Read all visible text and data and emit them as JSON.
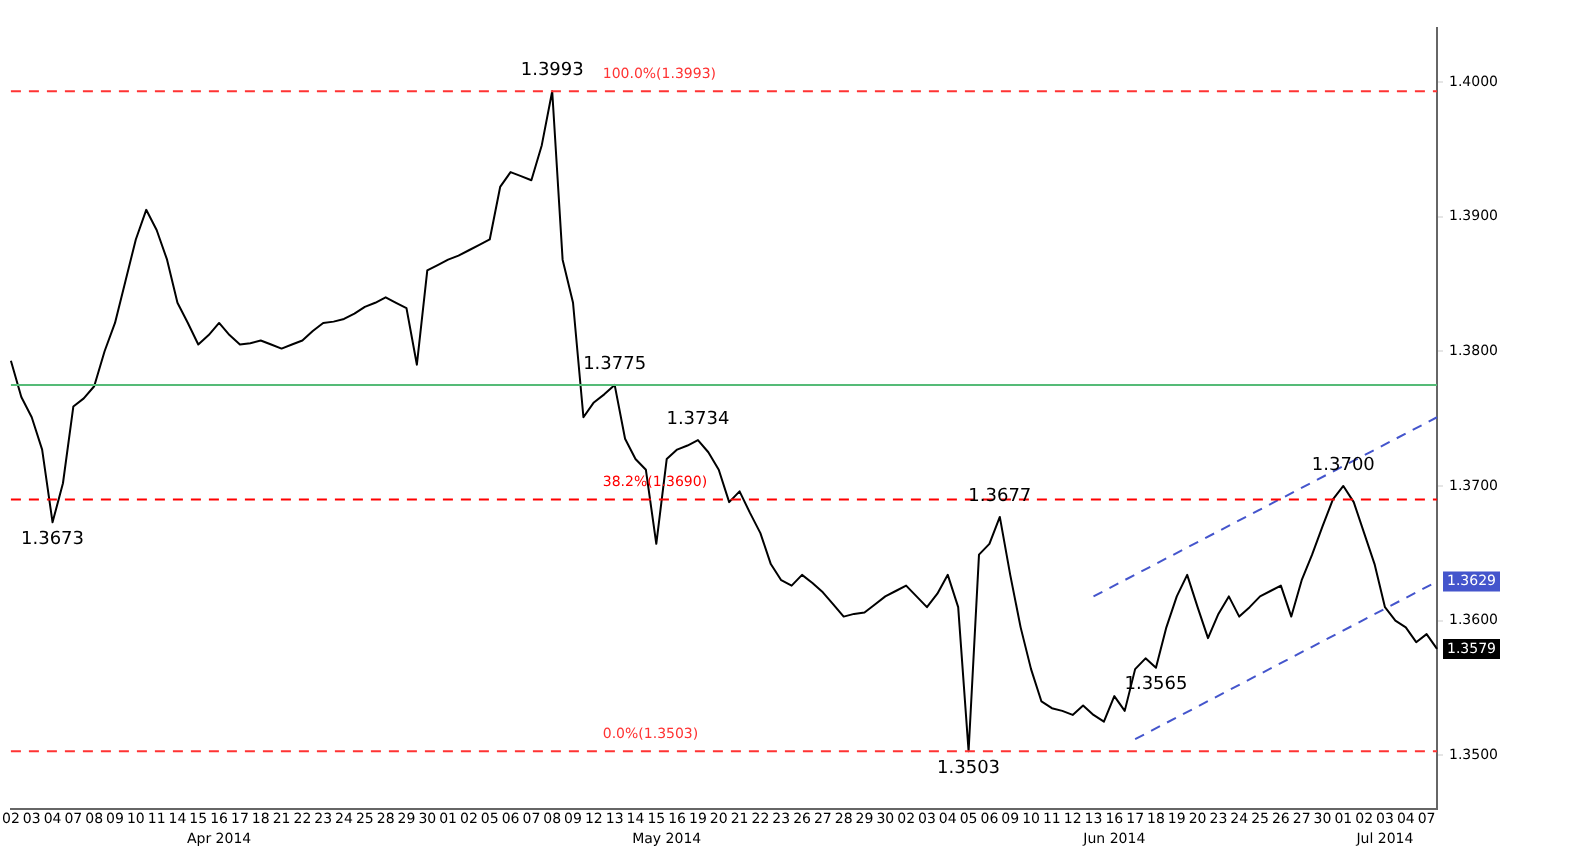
{
  "chart_data": {
    "type": "line",
    "marker": "none",
    "line_style": "solid",
    "categories": [
      "02",
      null,
      "03",
      null,
      "04",
      null,
      "07",
      null,
      "08",
      null,
      "09",
      null,
      "10",
      null,
      "11",
      null,
      "14",
      null,
      "15",
      null,
      "16",
      null,
      "17",
      null,
      "18",
      null,
      "21",
      null,
      "22",
      null,
      "23",
      null,
      "24",
      null,
      "25",
      null,
      "28",
      null,
      "29",
      null,
      "30",
      null,
      "01",
      null,
      "02",
      null,
      "05",
      null,
      "06",
      null,
      "07",
      null,
      "08",
      null,
      "09",
      null,
      "12",
      null,
      "13",
      null,
      "14",
      null,
      "15",
      null,
      "16",
      null,
      "19",
      null,
      "20",
      null,
      "21",
      null,
      "22",
      null,
      "23",
      null,
      "26",
      null,
      "27",
      null,
      "28",
      null,
      "29",
      null,
      "30",
      null,
      "02",
      null,
      "03",
      null,
      "04",
      null,
      "05",
      null,
      "06",
      null,
      "09",
      null,
      "10",
      null,
      "11",
      null,
      "12",
      null,
      "13",
      null,
      "16",
      null,
      "17",
      null,
      "18",
      null,
      "19",
      null,
      "20",
      null,
      "23",
      null,
      "24",
      null,
      "25",
      null,
      "26",
      null,
      "27",
      null,
      "30",
      null,
      "01",
      null,
      "02",
      null,
      "03",
      null,
      "04",
      null,
      "07",
      null
    ],
    "ylim": [
      1.346,
      1.404
    ],
    "yticks": [
      {
        "value": 1.35,
        "label": "1.3500"
      },
      {
        "value": 1.36,
        "label": "1.3600"
      },
      {
        "value": 1.37,
        "label": "1.3700"
      },
      {
        "value": 1.38,
        "label": "1.3800"
      },
      {
        "value": 1.39,
        "label": "1.3900"
      },
      {
        "value": 1.4,
        "label": "1.4000"
      }
    ],
    "series": [
      {
        "color": "#000000",
        "values": [
          1.3793,
          1.3766,
          1.3751,
          1.3727,
          1.3673,
          1.3702,
          1.3759,
          1.3765,
          1.3774,
          1.38,
          1.3821,
          1.3852,
          1.3883,
          1.3905,
          1.389,
          1.3868,
          1.3836,
          1.3821,
          1.3805,
          1.3812,
          1.3821,
          1.3812,
          1.3805,
          1.3806,
          1.3808,
          1.3805,
          1.3802,
          1.3805,
          1.3808,
          1.3815,
          1.3821,
          1.3822,
          1.3824,
          1.3828,
          1.3833,
          1.3836,
          1.384,
          1.3836,
          1.3832,
          1.379,
          1.386,
          1.3864,
          1.3868,
          1.3871,
          1.3875,
          1.3879,
          1.3883,
          1.3922,
          1.3933,
          1.393,
          1.3927,
          1.3953,
          1.3993,
          1.3868,
          1.3836,
          1.3751,
          1.3762,
          1.3768,
          1.3775,
          1.3735,
          1.372,
          1.3712,
          1.3657,
          1.372,
          1.3727,
          1.373,
          1.3734,
          1.3725,
          1.3712,
          1.3688,
          1.3696,
          1.368,
          1.3665,
          1.3642,
          1.363,
          1.3626,
          1.3634,
          1.3628,
          1.3621,
          1.3612,
          1.3603,
          1.3605,
          1.3606,
          1.3612,
          1.3618,
          1.3622,
          1.3626,
          1.3618,
          1.361,
          1.362,
          1.3634,
          1.361,
          1.3503,
          1.3649,
          1.3657,
          1.3677,
          1.3634,
          1.3595,
          1.3564,
          1.354,
          1.3535,
          1.3533,
          1.353,
          1.3537,
          1.353,
          1.3525,
          1.3544,
          1.3533,
          1.3564,
          1.3572,
          1.3565,
          1.3595,
          1.3618,
          1.3634,
          1.361,
          1.3587,
          1.3605,
          1.3618,
          1.3603,
          1.361,
          1.3618,
          1.3622,
          1.3626,
          1.3603,
          1.363,
          1.3649,
          1.367,
          1.369,
          1.37,
          1.3688,
          1.3665,
          1.3642,
          1.361,
          1.36,
          1.3595,
          1.3584,
          1.359,
          1.3579
        ]
      },
      {
        "type": "line",
        "color": "#4455cc",
        "line_style": "dashed",
        "values": [
          null,
          null,
          null,
          null,
          null,
          null,
          null,
          null,
          null,
          null,
          null,
          null,
          null,
          null,
          null,
          null,
          null,
          null,
          null,
          null,
          null,
          null,
          null,
          null,
          null,
          null,
          null,
          null,
          null,
          null,
          null,
          null,
          null,
          null,
          null,
          null,
          null,
          null,
          null,
          null,
          null,
          null,
          null,
          null,
          null,
          null,
          null,
          null,
          null,
          null,
          null,
          null,
          null,
          null,
          null,
          null,
          null,
          null,
          null,
          null,
          null,
          null,
          null,
          null,
          null,
          null,
          null,
          null,
          null,
          null,
          null,
          null,
          null,
          null,
          null,
          null,
          null,
          null,
          null,
          null,
          null,
          null,
          null,
          null,
          null,
          null,
          null,
          null,
          null,
          null,
          null,
          null,
          null,
          null,
          null,
          null,
          null,
          null,
          null,
          null,
          null,
          null,
          null,
          null,
          1.3618,
          null,
          null,
          null,
          null,
          null,
          null,
          null,
          null,
          null,
          null,
          null,
          null,
          null,
          null,
          null,
          null,
          null,
          null,
          null,
          null,
          null,
          null,
          null,
          null,
          null,
          null,
          null,
          null,
          null,
          null,
          null,
          null,
          1.3751
        ]
      },
      {
        "type": "line",
        "color": "#4455cc",
        "line_style": "dashed",
        "values": [
          null,
          null,
          null,
          null,
          null,
          null,
          null,
          null,
          null,
          null,
          null,
          null,
          null,
          null,
          null,
          null,
          null,
          null,
          null,
          null,
          null,
          null,
          null,
          null,
          null,
          null,
          null,
          null,
          null,
          null,
          null,
          null,
          null,
          null,
          null,
          null,
          null,
          null,
          null,
          null,
          null,
          null,
          null,
          null,
          null,
          null,
          null,
          null,
          null,
          null,
          null,
          null,
          null,
          null,
          null,
          null,
          null,
          null,
          null,
          null,
          null,
          null,
          null,
          null,
          null,
          null,
          null,
          null,
          null,
          null,
          null,
          null,
          null,
          null,
          null,
          null,
          null,
          null,
          null,
          null,
          null,
          null,
          null,
          null,
          null,
          null,
          null,
          null,
          null,
          null,
          null,
          null,
          null,
          null,
          null,
          null,
          null,
          null,
          null,
          null,
          null,
          null,
          null,
          null,
          null,
          null,
          null,
          null,
          1.3512,
          null,
          null,
          null,
          null,
          null,
          null,
          null,
          null,
          null,
          null,
          null,
          null,
          null,
          null,
          null,
          null,
          null,
          null,
          null,
          null,
          null,
          null,
          null,
          null,
          null,
          null,
          null,
          null,
          1.3629
        ]
      }
    ],
    "ref_lines": [
      {
        "axis": "y",
        "value": 1.3993,
        "label": "100.0%(1.3993)",
        "color": "#ff3333",
        "line_style": "dashed"
      },
      {
        "axis": "y",
        "value": 1.369,
        "label": "38.2%(1.3690)",
        "color": "#ff0000",
        "line_style": "dashed"
      },
      {
        "axis": "y",
        "value": 1.3503,
        "label": "0.0%(1.3503)",
        "color": "#ff3333",
        "line_style": "dashed"
      },
      {
        "axis": "y",
        "value": 1.3775,
        "color": "#55bb77",
        "line_style": "solid"
      }
    ],
    "annotations": [
      {
        "text": "1.3993",
        "y": 1.3993
      },
      {
        "text": "1.3673",
        "y": 1.3673
      },
      {
        "text": "1.3775",
        "y": 1.3775
      },
      {
        "text": "1.3734",
        "y": 1.3734
      },
      {
        "text": "1.3677",
        "y": 1.3677
      },
      {
        "text": "1.3503",
        "y": 1.3503
      },
      {
        "text": "1.3565",
        "y": 1.3565
      },
      {
        "text": "1.3700",
        "y": 1.37
      },
      {
        "text": "1.3629",
        "y": 1.3629
      },
      {
        "text": "1.3579",
        "y": 1.3579
      },
      "Apr 2014",
      "May 2014",
      "Jun 2014",
      "Jul 2014"
    ]
  }
}
